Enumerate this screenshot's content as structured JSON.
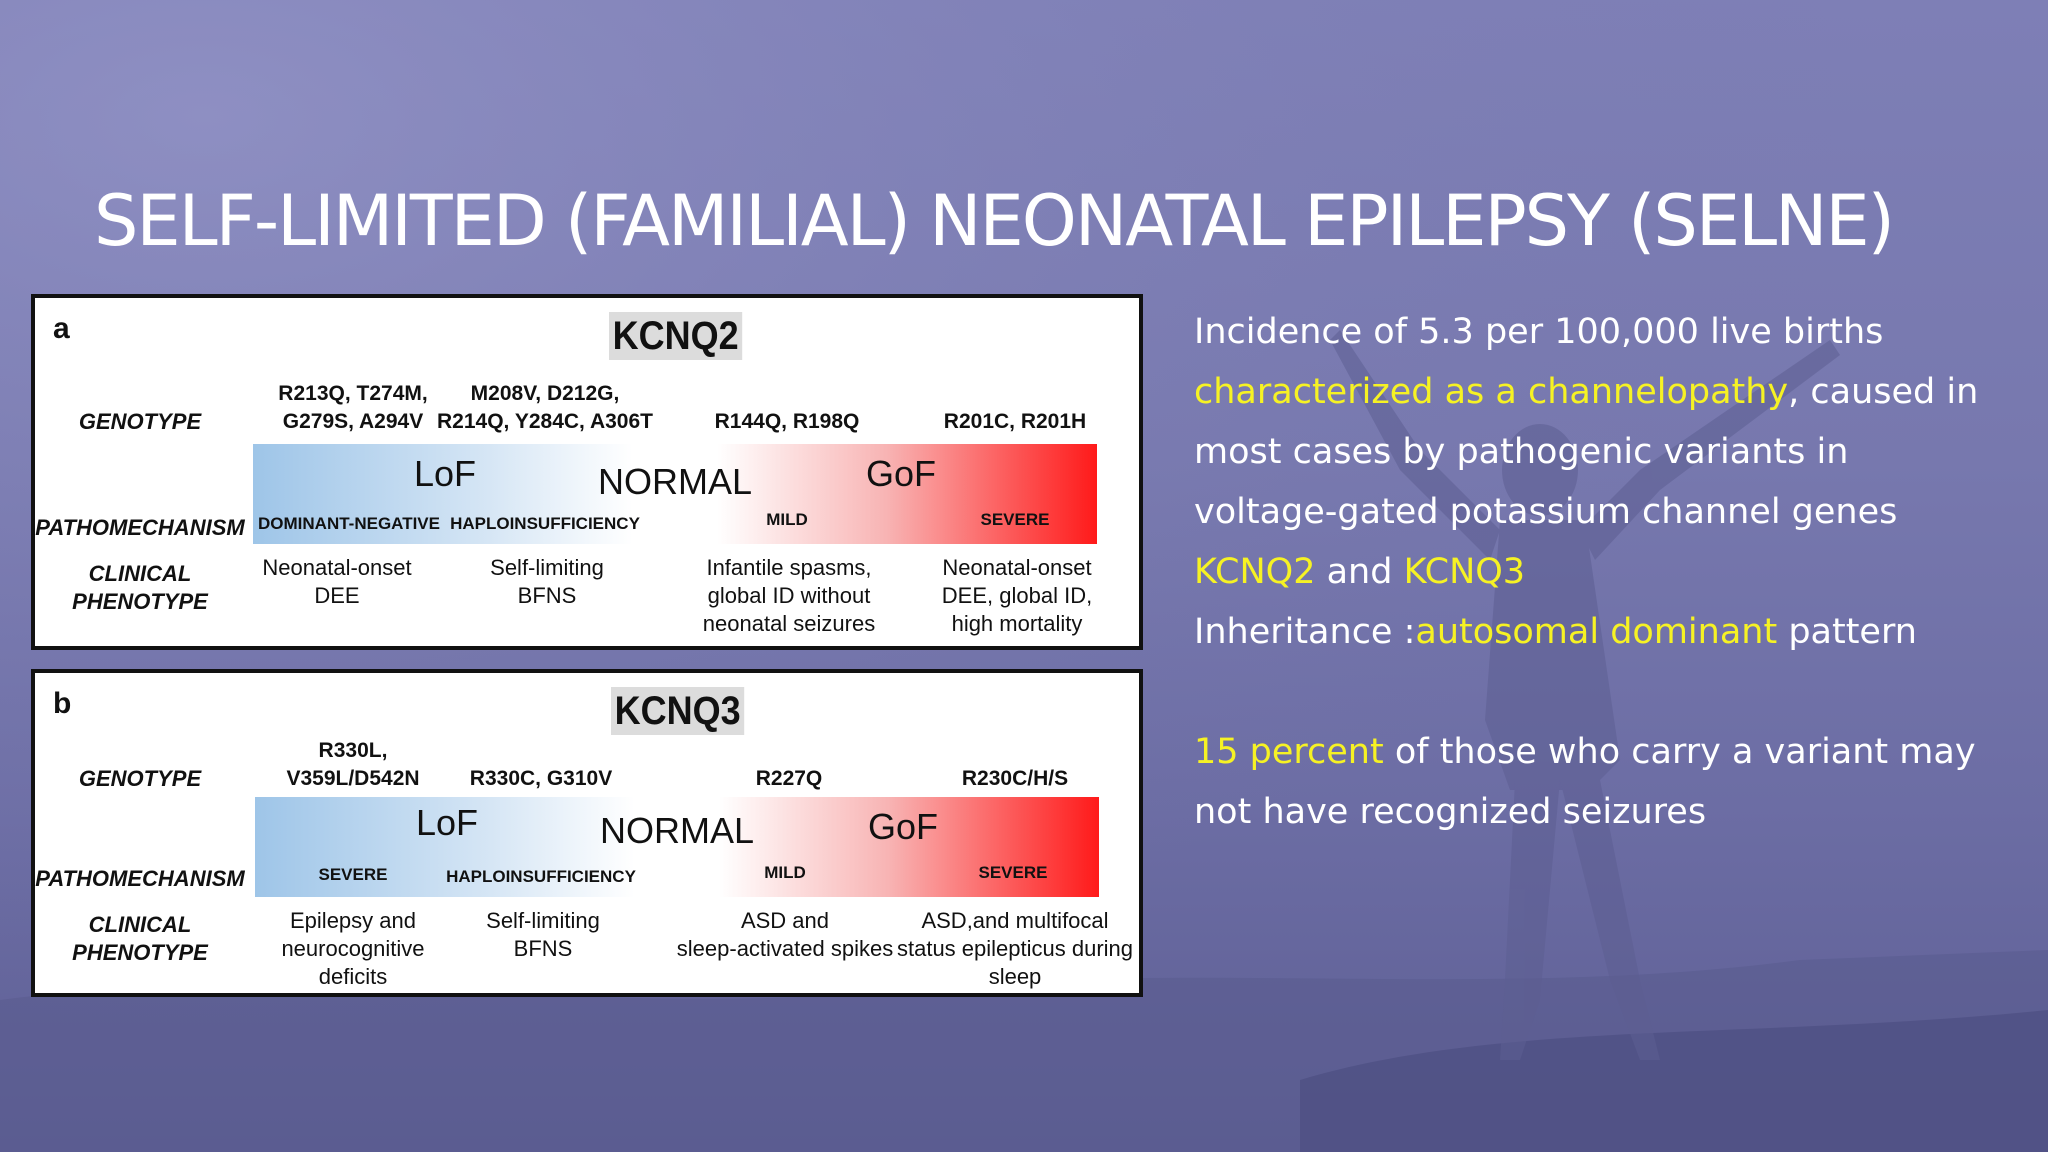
{
  "slide": {
    "title": "SELF-LIMITED (FAMILIAL) NEONATAL EPILEPSY (SELNE)"
  },
  "colors": {
    "background": "#7778ae",
    "highlight": "#f6f224",
    "text": "#ffffff",
    "lof_blue": "#9ec5e8",
    "gof_red": "#ff1a1a"
  },
  "figure": {
    "row_labels": {
      "genotype": "GENOTYPE",
      "pathomechanism": "PATHOMECHANISM",
      "clinical_line1": "CLINICAL",
      "clinical_line2": "PHENOTYPE"
    },
    "bar_labels": {
      "lof": "LoF",
      "normal": "NORMAL",
      "gof": "GoF"
    },
    "panel_a": {
      "letter": "a",
      "gene": "KCNQ2",
      "genotypes": [
        [
          "R213Q, T274M,",
          "G279S, A294V"
        ],
        [
          "M208V, D212G,",
          "R214Q, Y284C, A306T"
        ],
        [
          "R144Q, R198Q"
        ],
        [
          "R201C, R201H"
        ]
      ],
      "mechanisms": [
        "DOMINANT-NEGATIVE",
        "HAPLOINSUFFICIENCY",
        "MILD",
        "SEVERE"
      ],
      "phenotypes": [
        [
          "Neonatal-onset",
          "DEE"
        ],
        [
          "Self-limiting",
          "BFNS"
        ],
        [
          "Infantile spasms,",
          "global ID without",
          "neonatal seizures"
        ],
        [
          "Neonatal-onset",
          "DEE, global ID,",
          "high mortality"
        ]
      ]
    },
    "panel_b": {
      "letter": "b",
      "gene": "KCNQ3",
      "genotypes": [
        [
          "R330L,",
          "V359L/D542N"
        ],
        [
          "R330C, G310V"
        ],
        [
          "R227Q"
        ],
        [
          "R230C/H/S"
        ]
      ],
      "mechanisms": [
        "SEVERE",
        "HAPLOINSUFFICIENCY",
        "MILD",
        "SEVERE"
      ],
      "phenotypes": [
        [
          "Epilepsy and",
          "neurocognitive",
          "deficits"
        ],
        [
          "Self-limiting",
          "BFNS"
        ],
        [
          "ASD and",
          "sleep-activated spikes"
        ],
        [
          "ASD,and multifocal",
          "status epilepticus during",
          "sleep"
        ]
      ]
    }
  },
  "side_text": {
    "line1": "Incidence of 5.3 per 100,000 live births",
    "line2_hl": "characterized as a channelopathy",
    "line2_rest": ", caused in",
    "line3": "most cases by pathogenic variants in",
    "line4": "voltage-gated potassium channel genes",
    "line5_hl1": "KCNQ2",
    "line5_and": " and ",
    "line5_hl2": "KCNQ3",
    "line6_pre": "Inheritance :",
    "line6_hl": "autosomal dominant",
    "line6_post": " pattern",
    "line8_hl": "15 percent",
    "line8_rest": " of those who carry a variant may",
    "line9": "not have recognized seizures"
  }
}
